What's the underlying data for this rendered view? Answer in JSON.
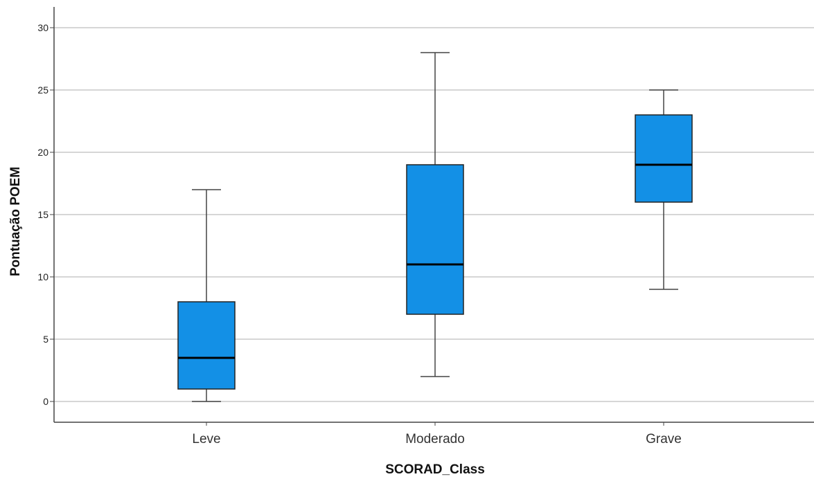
{
  "chart_data": {
    "type": "boxplot",
    "title": "",
    "xlabel": "SCORAD_Class",
    "ylabel": "Pontuação POEM",
    "ylim": [
      0,
      30
    ],
    "yticks": [
      "0",
      "5",
      "10",
      "15",
      "20",
      "25",
      "30"
    ],
    "grid": true,
    "categories": [
      "Leve",
      "Moderado",
      "Grave"
    ],
    "boxes": [
      {
        "category": "Leve",
        "min": 0,
        "q1": 1,
        "median": 3.5,
        "q3": 8,
        "max": 17
      },
      {
        "category": "Moderado",
        "min": 2,
        "q1": 7,
        "median": 11,
        "q3": 19,
        "max": 28
      },
      {
        "category": "Grave",
        "min": 9,
        "q1": 16,
        "median": 19,
        "q3": 23,
        "max": 25
      }
    ],
    "colors": {
      "box_fill": "#1390e6",
      "box_stroke": "#222222",
      "median": "#000000",
      "whisker": "#444444",
      "grid": "#c8c8c8",
      "axis": "#444444"
    }
  }
}
